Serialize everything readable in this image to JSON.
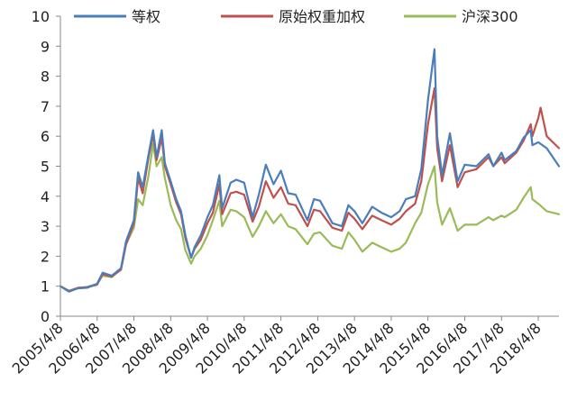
{
  "chart_data": {
    "type": "line",
    "title": "",
    "xlabel": "",
    "ylabel": "",
    "ylim": [
      0,
      10
    ],
    "yticks": [
      0,
      1,
      2,
      3,
      4,
      5,
      6,
      7,
      8,
      9,
      10
    ],
    "xlim": [
      "2005/4/8",
      "2018/10/31"
    ],
    "xticks": [
      "2005/4/8",
      "2006/4/8",
      "2007/4/8",
      "2008/4/8",
      "2009/4/8",
      "2010/4/8",
      "2011/4/8",
      "2012/4/8",
      "2013/4/8",
      "2014/4/8",
      "2015/4/8",
      "2016/4/8",
      "2017/4/8",
      "2018/4/8"
    ],
    "legend_position": "top",
    "grid": false,
    "series": [
      {
        "name": "等权",
        "color": "#4a7ebb",
        "points": [
          [
            "2005/4/8",
            1.0
          ],
          [
            "2005/7/1",
            0.82
          ],
          [
            "2005/10/1",
            0.93
          ],
          [
            "2006/1/1",
            0.95
          ],
          [
            "2006/4/8",
            1.08
          ],
          [
            "2006/6/1",
            1.45
          ],
          [
            "2006/9/1",
            1.35
          ],
          [
            "2006/12/1",
            1.6
          ],
          [
            "2007/1/20",
            2.5
          ],
          [
            "2007/4/8",
            3.2
          ],
          [
            "2007/5/20",
            4.8
          ],
          [
            "2007/7/5",
            4.3
          ],
          [
            "2007/9/1",
            5.4
          ],
          [
            "2007/10/16",
            6.2
          ],
          [
            "2007/11/20",
            5.3
          ],
          [
            "2008/1/10",
            6.2
          ],
          [
            "2008/2/10",
            5.1
          ],
          [
            "2008/4/8",
            4.5
          ],
          [
            "2008/6/1",
            3.9
          ],
          [
            "2008/7/20",
            3.5
          ],
          [
            "2008/9/1",
            2.7
          ],
          [
            "2008/10/28",
            1.95
          ],
          [
            "2008/12/1",
            2.3
          ],
          [
            "2009/2/1",
            2.7
          ],
          [
            "2009/4/8",
            3.3
          ],
          [
            "2009/6/1",
            3.7
          ],
          [
            "2009/8/4",
            4.7
          ],
          [
            "2009/9/1",
            3.6
          ],
          [
            "2009/11/24",
            4.45
          ],
          [
            "2010/1/20",
            4.55
          ],
          [
            "2010/4/8",
            4.45
          ],
          [
            "2010/7/1",
            3.3
          ],
          [
            "2010/9/1",
            4.05
          ],
          [
            "2010/11/10",
            5.05
          ],
          [
            "2011/1/25",
            4.4
          ],
          [
            "2011/4/8",
            4.85
          ],
          [
            "2011/6/20",
            4.1
          ],
          [
            "2011/9/1",
            4.05
          ],
          [
            "2011/12/28",
            3.2
          ],
          [
            "2012/3/1",
            3.9
          ],
          [
            "2012/5/1",
            3.85
          ],
          [
            "2012/9/1",
            3.1
          ],
          [
            "2012/12/4",
            3.0
          ],
          [
            "2013/2/6",
            3.7
          ],
          [
            "2013/4/8",
            3.5
          ],
          [
            "2013/6/25",
            3.1
          ],
          [
            "2013/10/1",
            3.65
          ],
          [
            "2014/1/1",
            3.45
          ],
          [
            "2014/4/8",
            3.3
          ],
          [
            "2014/7/1",
            3.5
          ],
          [
            "2014/9/1",
            3.9
          ],
          [
            "2014/12/1",
            4.0
          ],
          [
            "2015/2/1",
            4.9
          ],
          [
            "2015/4/8",
            7.2
          ],
          [
            "2015/6/12",
            8.9
          ],
          [
            "2015/7/9",
            6.0
          ],
          [
            "2015/8/26",
            4.7
          ],
          [
            "2015/11/12",
            6.1
          ],
          [
            "2016/1/28",
            4.5
          ],
          [
            "2016/4/8",
            5.05
          ],
          [
            "2016/8/1",
            5.0
          ],
          [
            "2016/11/30",
            5.4
          ],
          [
            "2017/1/16",
            5.0
          ],
          [
            "2017/4/8",
            5.45
          ],
          [
            "2017/5/10",
            5.2
          ],
          [
            "2017/9/1",
            5.5
          ],
          [
            "2017/11/13",
            5.95
          ],
          [
            "2018/1/24",
            6.2
          ],
          [
            "2018/2/9",
            5.7
          ],
          [
            "2018/4/8",
            5.8
          ],
          [
            "2018/7/1",
            5.6
          ],
          [
            "2018/10/31",
            5.0
          ]
        ]
      },
      {
        "name": "原始权重加权",
        "color": "#c0504d",
        "points": [
          [
            "2005/4/8",
            1.0
          ],
          [
            "2005/7/1",
            0.84
          ],
          [
            "2005/10/1",
            0.95
          ],
          [
            "2006/1/1",
            0.97
          ],
          [
            "2006/4/8",
            1.05
          ],
          [
            "2006/6/1",
            1.4
          ],
          [
            "2006/9/1",
            1.32
          ],
          [
            "2006/12/1",
            1.55
          ],
          [
            "2007/1/20",
            2.4
          ],
          [
            "2007/4/8",
            3.1
          ],
          [
            "2007/5/20",
            4.6
          ],
          [
            "2007/7/5",
            4.1
          ],
          [
            "2007/9/1",
            5.3
          ],
          [
            "2007/10/16",
            6.05
          ],
          [
            "2007/11/20",
            5.2
          ],
          [
            "2008/1/10",
            5.95
          ],
          [
            "2008/2/10",
            5.0
          ],
          [
            "2008/4/8",
            4.4
          ],
          [
            "2008/6/1",
            3.8
          ],
          [
            "2008/7/20",
            3.4
          ],
          [
            "2008/9/1",
            2.6
          ],
          [
            "2008/10/28",
            1.95
          ],
          [
            "2008/12/1",
            2.25
          ],
          [
            "2009/2/1",
            2.55
          ],
          [
            "2009/4/8",
            3.1
          ],
          [
            "2009/6/1",
            3.45
          ],
          [
            "2009/8/4",
            4.4
          ],
          [
            "2009/9/1",
            3.4
          ],
          [
            "2009/11/24",
            4.1
          ],
          [
            "2010/1/20",
            4.15
          ],
          [
            "2010/4/8",
            4.05
          ],
          [
            "2010/7/1",
            3.15
          ],
          [
            "2010/9/1",
            3.65
          ],
          [
            "2010/11/10",
            4.5
          ],
          [
            "2011/1/25",
            3.95
          ],
          [
            "2011/4/8",
            4.3
          ],
          [
            "2011/6/20",
            3.75
          ],
          [
            "2011/9/1",
            3.7
          ],
          [
            "2011/12/28",
            3.0
          ],
          [
            "2012/3/1",
            3.55
          ],
          [
            "2012/5/1",
            3.5
          ],
          [
            "2012/9/1",
            2.95
          ],
          [
            "2012/12/4",
            2.85
          ],
          [
            "2013/2/6",
            3.45
          ],
          [
            "2013/4/8",
            3.25
          ],
          [
            "2013/6/25",
            2.9
          ],
          [
            "2013/10/1",
            3.35
          ],
          [
            "2014/1/1",
            3.2
          ],
          [
            "2014/4/8",
            3.05
          ],
          [
            "2014/7/1",
            3.25
          ],
          [
            "2014/9/1",
            3.5
          ],
          [
            "2014/12/1",
            3.75
          ],
          [
            "2015/2/1",
            4.5
          ],
          [
            "2015/4/8",
            6.4
          ],
          [
            "2015/6/12",
            7.6
          ],
          [
            "2015/7/9",
            5.6
          ],
          [
            "2015/8/26",
            4.5
          ],
          [
            "2015/11/12",
            5.7
          ],
          [
            "2016/1/28",
            4.3
          ],
          [
            "2016/4/8",
            4.8
          ],
          [
            "2016/8/1",
            4.9
          ],
          [
            "2016/11/30",
            5.3
          ],
          [
            "2017/1/16",
            5.0
          ],
          [
            "2017/4/8",
            5.3
          ],
          [
            "2017/5/10",
            5.1
          ],
          [
            "2017/9/1",
            5.45
          ],
          [
            "2017/11/13",
            5.85
          ],
          [
            "2018/1/24",
            6.4
          ],
          [
            "2018/2/9",
            6.0
          ],
          [
            "2018/4/8",
            6.6
          ],
          [
            "2018/5/1",
            6.95
          ],
          [
            "2018/7/1",
            6.0
          ],
          [
            "2018/10/31",
            5.6
          ]
        ]
      },
      {
        "name": "沪深300",
        "color": "#9bbb59",
        "points": [
          [
            "2005/4/8",
            1.0
          ],
          [
            "2005/7/1",
            0.85
          ],
          [
            "2005/10/1",
            0.93
          ],
          [
            "2006/1/1",
            0.98
          ],
          [
            "2006/4/8",
            1.08
          ],
          [
            "2006/6/1",
            1.35
          ],
          [
            "2006/9/1",
            1.3
          ],
          [
            "2006/12/1",
            1.6
          ],
          [
            "2007/1/20",
            2.4
          ],
          [
            "2007/4/8",
            2.95
          ],
          [
            "2007/5/20",
            3.9
          ],
          [
            "2007/7/5",
            3.7
          ],
          [
            "2007/9/1",
            4.7
          ],
          [
            "2007/10/16",
            5.75
          ],
          [
            "2007/11/20",
            5.0
          ],
          [
            "2008/1/10",
            5.3
          ],
          [
            "2008/2/10",
            4.6
          ],
          [
            "2008/4/8",
            3.7
          ],
          [
            "2008/6/1",
            3.2
          ],
          [
            "2008/7/20",
            2.9
          ],
          [
            "2008/9/1",
            2.2
          ],
          [
            "2008/10/28",
            1.75
          ],
          [
            "2008/12/1",
            2.0
          ],
          [
            "2009/2/1",
            2.25
          ],
          [
            "2009/4/8",
            2.7
          ],
          [
            "2009/6/1",
            3.2
          ],
          [
            "2009/8/4",
            3.85
          ],
          [
            "2009/9/1",
            3.0
          ],
          [
            "2009/11/24",
            3.55
          ],
          [
            "2010/1/20",
            3.5
          ],
          [
            "2010/4/8",
            3.3
          ],
          [
            "2010/7/1",
            2.65
          ],
          [
            "2010/9/1",
            3.0
          ],
          [
            "2010/11/10",
            3.5
          ],
          [
            "2011/1/25",
            3.1
          ],
          [
            "2011/4/8",
            3.4
          ],
          [
            "2011/6/20",
            3.0
          ],
          [
            "2011/9/1",
            2.9
          ],
          [
            "2011/12/28",
            2.4
          ],
          [
            "2012/3/1",
            2.75
          ],
          [
            "2012/5/1",
            2.8
          ],
          [
            "2012/9/1",
            2.35
          ],
          [
            "2012/12/4",
            2.25
          ],
          [
            "2013/2/6",
            2.8
          ],
          [
            "2013/4/8",
            2.55
          ],
          [
            "2013/6/25",
            2.15
          ],
          [
            "2013/10/1",
            2.45
          ],
          [
            "2014/1/1",
            2.3
          ],
          [
            "2014/4/8",
            2.15
          ],
          [
            "2014/7/1",
            2.25
          ],
          [
            "2014/9/1",
            2.45
          ],
          [
            "2014/12/1",
            3.1
          ],
          [
            "2015/2/1",
            3.45
          ],
          [
            "2015/4/8",
            4.4
          ],
          [
            "2015/6/12",
            5.0
          ],
          [
            "2015/7/9",
            3.8
          ],
          [
            "2015/8/26",
            3.05
          ],
          [
            "2015/11/12",
            3.6
          ],
          [
            "2016/1/28",
            2.85
          ],
          [
            "2016/4/8",
            3.05
          ],
          [
            "2016/8/1",
            3.05
          ],
          [
            "2016/11/30",
            3.3
          ],
          [
            "2017/1/16",
            3.2
          ],
          [
            "2017/4/8",
            3.35
          ],
          [
            "2017/5/10",
            3.3
          ],
          [
            "2017/9/1",
            3.55
          ],
          [
            "2017/11/13",
            3.95
          ],
          [
            "2018/1/24",
            4.3
          ],
          [
            "2018/2/9",
            3.9
          ],
          [
            "2018/4/8",
            3.75
          ],
          [
            "2018/7/1",
            3.5
          ],
          [
            "2018/10/31",
            3.4
          ]
        ]
      }
    ]
  }
}
